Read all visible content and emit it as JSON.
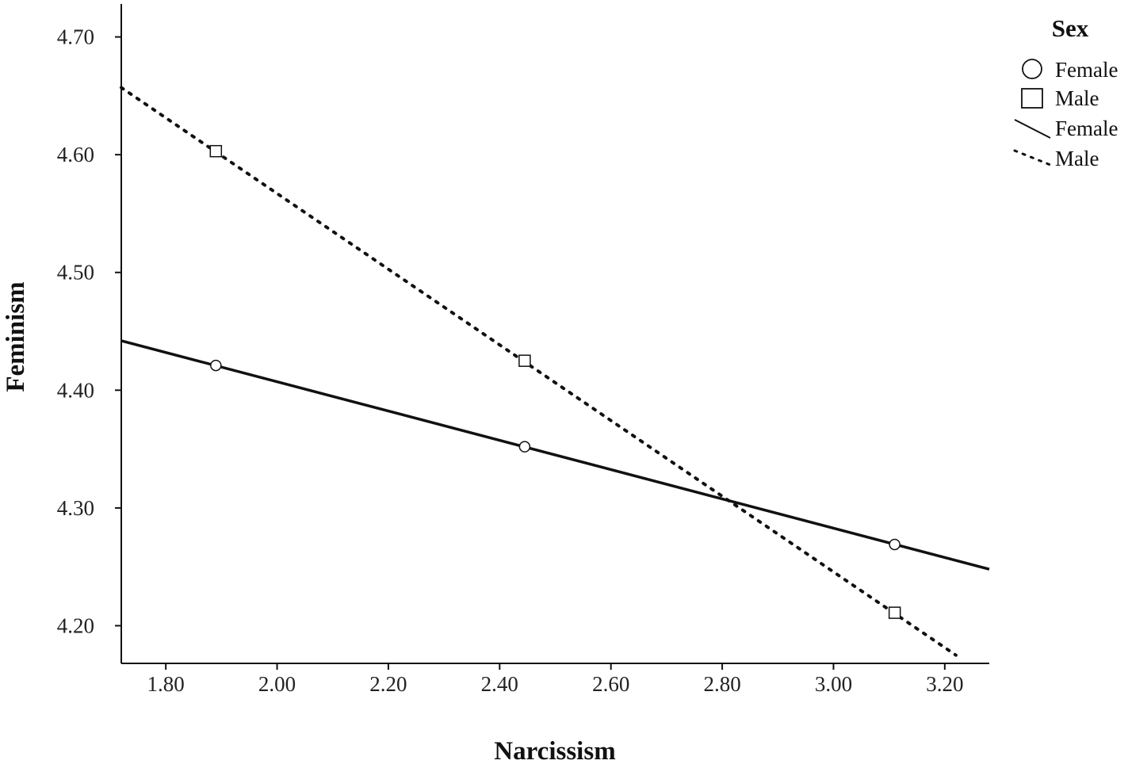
{
  "chart_data": {
    "type": "scatter",
    "title": "",
    "xlabel": "Narcissism",
    "ylabel": "Feminism",
    "xlim": [
      1.72,
      3.28
    ],
    "ylim": [
      4.168,
      4.728
    ],
    "x_ticks": [
      1.8,
      2.0,
      2.2,
      2.4,
      2.6,
      2.8,
      3.0,
      3.2
    ],
    "x_tick_labels": [
      "1.80",
      "2.00",
      "2.20",
      "2.40",
      "2.60",
      "2.80",
      "3.00",
      "3.20"
    ],
    "y_ticks": [
      4.2,
      4.3,
      4.4,
      4.5,
      4.6,
      4.7
    ],
    "y_tick_labels": [
      "4.20",
      "4.30",
      "4.40",
      "4.50",
      "4.60",
      "4.70"
    ],
    "grid": false,
    "legend_position": "top-right",
    "legend": {
      "title": "Sex",
      "entries": [
        {
          "label": "Female",
          "symbol": "circle"
        },
        {
          "label": "Male",
          "symbol": "square"
        },
        {
          "label": "Female",
          "symbol": "solid-line"
        },
        {
          "label": "Male",
          "symbol": "dotted-line"
        }
      ]
    },
    "series": [
      {
        "name": "Female",
        "marker": "circle",
        "x": [
          1.89,
          2.445,
          3.11
        ],
        "y": [
          4.421,
          4.352,
          4.269
        ]
      },
      {
        "name": "Male",
        "marker": "square",
        "x": [
          1.89,
          2.445,
          3.11
        ],
        "y": [
          4.603,
          4.425,
          4.211
        ]
      }
    ],
    "fit_lines": [
      {
        "name": "Female",
        "style": "solid",
        "x": [
          1.72,
          3.28
        ],
        "y": [
          4.442,
          4.248
        ]
      },
      {
        "name": "Male",
        "style": "dotted",
        "x": [
          1.72,
          3.22
        ],
        "y": [
          4.657,
          4.175
        ]
      }
    ]
  }
}
